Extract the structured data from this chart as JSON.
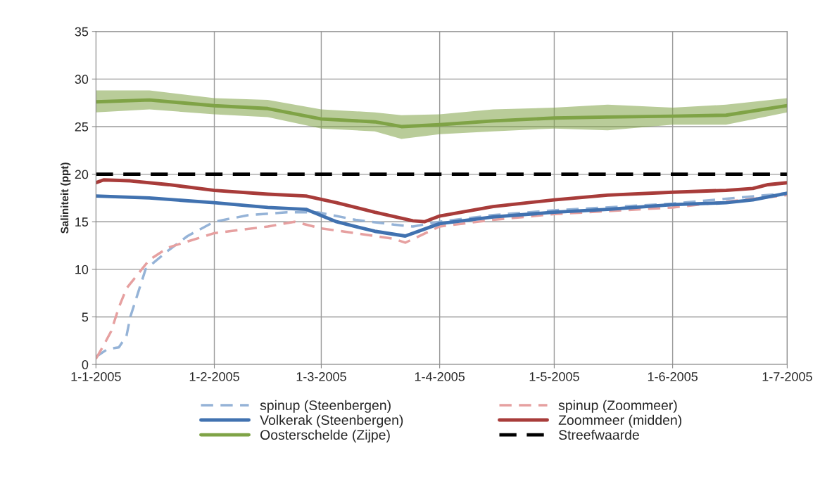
{
  "chart_data": {
    "type": "line",
    "ylabel": "Saliniteit (ppt)",
    "xlim": [
      "2005-01-01",
      "2005-07-01"
    ],
    "ylim": [
      0,
      35
    ],
    "xticks": [
      {
        "value": "2005-01-01",
        "label": "1-1-2005"
      },
      {
        "value": "2005-02-01",
        "label": "1-2-2005"
      },
      {
        "value": "2005-03-01",
        "label": "1-3-2005"
      },
      {
        "value": "2005-04-01",
        "label": "1-4-2005"
      },
      {
        "value": "2005-05-01",
        "label": "1-5-2005"
      },
      {
        "value": "2005-06-01",
        "label": "1-6-2005"
      },
      {
        "value": "2005-07-01",
        "label": "1-7-2005"
      }
    ],
    "yticks": [
      0,
      5,
      10,
      15,
      20,
      25,
      30,
      35
    ],
    "grid": true,
    "legend": "bottom",
    "series": [
      {
        "name": "spinup (Steenbergen)",
        "color": "#95b3d7",
        "line_style": "dashed",
        "x": [
          "2005-01-01",
          "2005-01-04",
          "2005-01-07",
          "2005-01-09",
          "2005-01-10",
          "2005-01-12",
          "2005-01-14",
          "2005-01-20",
          "2005-01-25",
          "2005-02-01",
          "2005-02-10",
          "2005-02-20",
          "2005-02-28",
          "2005-03-10",
          "2005-03-20",
          "2005-03-25",
          "2005-04-01",
          "2005-04-15",
          "2005-05-01",
          "2005-06-01",
          "2005-07-01"
        ],
        "values": [
          0.8,
          1.6,
          1.8,
          3,
          5,
          7.5,
          10,
          12,
          13.5,
          15,
          15.7,
          16,
          16,
          15.2,
          14.7,
          14.5,
          15,
          15.7,
          16.2,
          16.9,
          18
        ]
      },
      {
        "name": "spinup (Zoommeer)",
        "color": "#e6a0a0",
        "line_style": "dashed",
        "x": [
          "2005-01-01",
          "2005-01-03",
          "2005-01-05",
          "2005-01-07",
          "2005-01-09",
          "2005-01-12",
          "2005-01-15",
          "2005-01-20",
          "2005-02-01",
          "2005-02-15",
          "2005-02-22",
          "2005-03-01",
          "2005-03-10",
          "2005-03-20",
          "2005-03-23",
          "2005-04-01",
          "2005-04-15",
          "2005-05-01",
          "2005-06-01",
          "2005-07-01"
        ],
        "values": [
          0.6,
          2,
          3.5,
          6,
          8,
          9.5,
          11,
          12.3,
          13.8,
          14.5,
          15,
          14.3,
          13.8,
          13.2,
          12.8,
          14.5,
          15.2,
          15.8,
          16.5,
          17.8
        ]
      },
      {
        "name": "Volkerak (Steenbergen)",
        "color": "#4172b0",
        "line_style": "solid",
        "x": [
          "2005-01-01",
          "2005-01-15",
          "2005-02-01",
          "2005-02-15",
          "2005-02-25",
          "2005-03-05",
          "2005-03-15",
          "2005-03-23",
          "2005-04-01",
          "2005-04-15",
          "2005-05-01",
          "2005-05-15",
          "2005-06-01",
          "2005-06-15",
          "2005-06-22",
          "2005-07-01"
        ],
        "values": [
          17.7,
          17.5,
          17,
          16.5,
          16.3,
          15,
          14,
          13.5,
          14.8,
          15.5,
          16,
          16.3,
          16.8,
          17,
          17.3,
          18
        ]
      },
      {
        "name": "Zoommeer (midden)",
        "color": "#a83c3a",
        "line_style": "solid",
        "x": [
          "2005-01-01",
          "2005-01-03",
          "2005-01-10",
          "2005-01-20",
          "2005-02-01",
          "2005-02-15",
          "2005-02-25",
          "2005-03-05",
          "2005-03-15",
          "2005-03-25",
          "2005-03-28",
          "2005-04-01",
          "2005-04-15",
          "2005-05-01",
          "2005-05-15",
          "2005-06-01",
          "2005-06-15",
          "2005-06-22",
          "2005-06-26",
          "2005-07-01"
        ],
        "values": [
          19.1,
          19.4,
          19.3,
          18.9,
          18.3,
          17.9,
          17.7,
          17,
          16,
          15.1,
          15,
          15.6,
          16.6,
          17.3,
          17.8,
          18.1,
          18.3,
          18.5,
          18.9,
          19.1
        ]
      },
      {
        "name": "Oosterschelde (Zijpe)",
        "color": "#7fa346",
        "line_style": "solid",
        "x": [
          "2005-01-01",
          "2005-01-15",
          "2005-02-01",
          "2005-02-15",
          "2005-03-01",
          "2005-03-15",
          "2005-03-22",
          "2005-04-01",
          "2005-04-15",
          "2005-05-01",
          "2005-05-15",
          "2005-06-01",
          "2005-06-15",
          "2005-07-01"
        ],
        "values": [
          27.6,
          27.8,
          27.2,
          26.9,
          25.8,
          25.5,
          25,
          25.2,
          25.6,
          25.9,
          26,
          26.1,
          26.2,
          27.2
        ],
        "lower": [
          26.5,
          26.8,
          26.3,
          26,
          24.8,
          24.5,
          23.7,
          24.2,
          24.5,
          24.8,
          24.6,
          25.2,
          25.2,
          26.5
        ],
        "upper": [
          28.8,
          28.8,
          28,
          27.8,
          26.8,
          26.5,
          26.2,
          26.3,
          26.8,
          27,
          27.3,
          27,
          27.3,
          28
        ]
      },
      {
        "name": "Streefwaarde",
        "color": "#000000",
        "line_style": "dashed",
        "x": [
          "2005-01-01",
          "2005-07-01"
        ],
        "values": [
          20,
          20
        ]
      }
    ]
  }
}
